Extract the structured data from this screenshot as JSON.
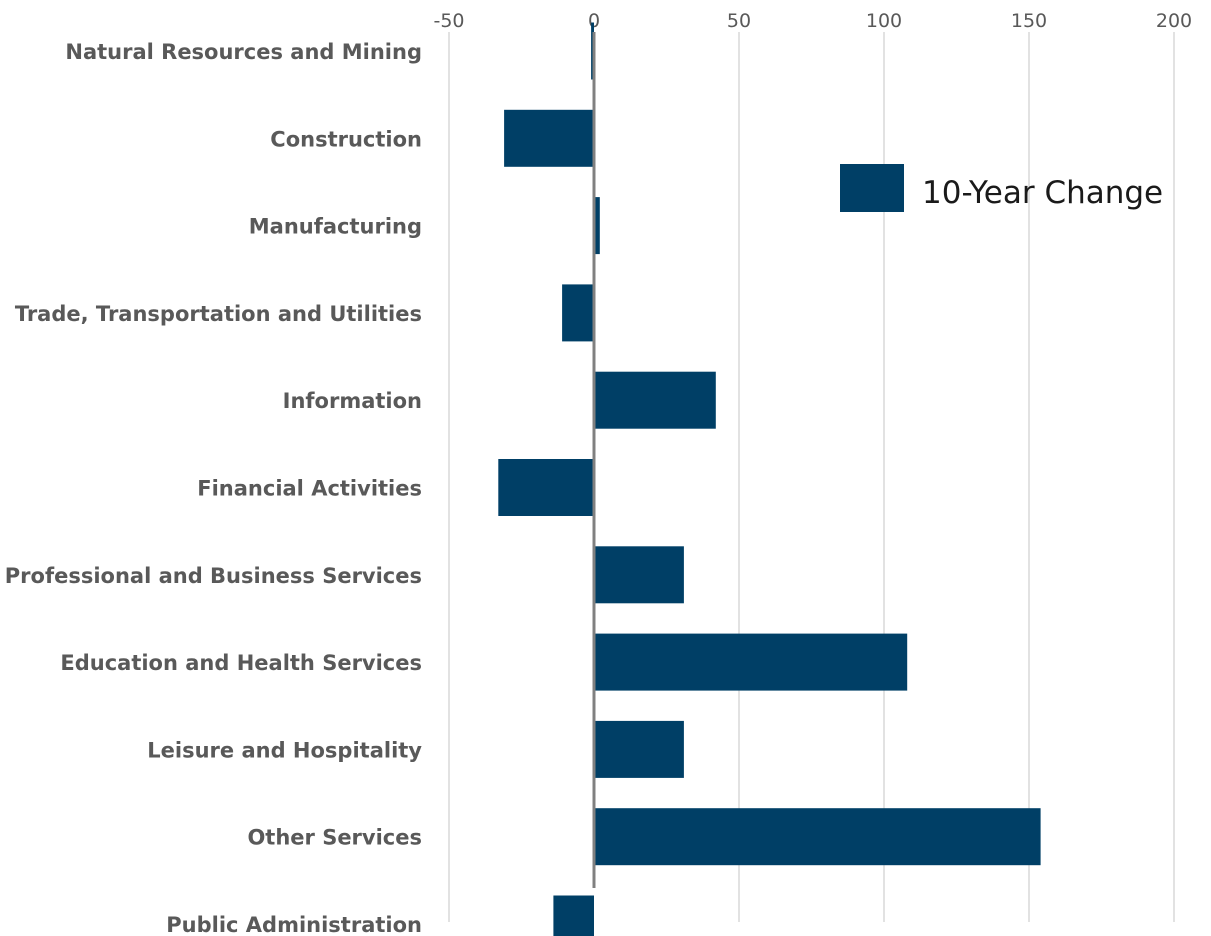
{
  "chart_data": {
    "type": "bar",
    "orientation": "horizontal",
    "categories": [
      "Natural Resources and Mining",
      "Construction",
      "Manufacturing",
      "Trade, Transportation and Utilities",
      "Information",
      "Financial Activities",
      "Professional and Business Services",
      "Education and Health Services",
      "Leisure and Hospitality",
      "Other Services",
      "Public Administration"
    ],
    "series": [
      {
        "name": "10-Year Change",
        "color": "#003f66",
        "values": [
          -1,
          -31,
          2,
          -11,
          42,
          -33,
          31,
          108,
          31,
          154,
          -14
        ]
      }
    ],
    "xlim": [
      -50,
      200
    ],
    "xticks": [
      -50,
      0,
      50,
      100,
      150,
      200
    ],
    "tick_labels": [
      "-50",
      "0",
      "50",
      "100",
      "150",
      "200"
    ],
    "x_axis_position": "top",
    "grid": true,
    "legend_position": "top-right"
  }
}
